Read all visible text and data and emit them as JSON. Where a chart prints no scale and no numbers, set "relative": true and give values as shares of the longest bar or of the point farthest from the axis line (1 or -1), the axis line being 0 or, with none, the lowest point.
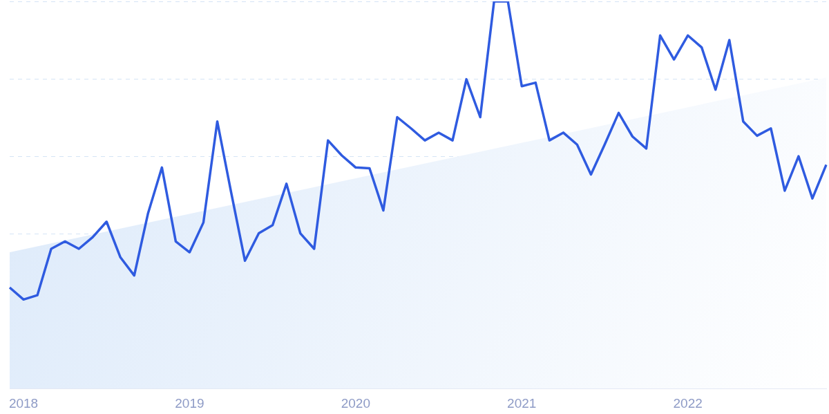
{
  "chart_data": {
    "type": "line",
    "relative": true,
    "grid": "y",
    "legend": false,
    "marker": "none",
    "line_style": "solid",
    "categories": [
      null,
      "2018",
      null,
      null,
      null,
      null,
      null,
      null,
      null,
      null,
      null,
      null,
      null,
      "2019",
      null,
      null,
      null,
      null,
      null,
      null,
      null,
      null,
      null,
      null,
      null,
      "2020",
      null,
      null,
      null,
      null,
      null,
      null,
      null,
      null,
      null,
      null,
      null,
      "2021",
      null,
      null,
      null,
      null,
      null,
      null,
      null,
      null,
      null,
      null,
      null,
      "2022",
      null,
      null,
      null,
      null,
      null,
      null,
      null,
      null,
      null,
      null
    ],
    "series": [
      {
        "color": "#2f5be0",
        "values": [
          0.261,
          0.23,
          0.241,
          0.361,
          0.38,
          0.361,
          0.391,
          0.431,
          0.339,
          0.292,
          0.453,
          0.571,
          0.38,
          0.352,
          0.429,
          0.69,
          0.507,
          0.33,
          0.401,
          0.422,
          0.529,
          0.401,
          0.361,
          0.641,
          0.602,
          0.571,
          0.569,
          0.46,
          0.701,
          0.672,
          0.641,
          0.661,
          0.641,
          0.799,
          0.701,
          1,
          1,
          0.781,
          0.79,
          0.641,
          0.661,
          0.63,
          0.553,
          0.631,
          0.712,
          0.651,
          0.62,
          0.912,
          0.85,
          0.912,
          0.881,
          0.772,
          0.9,
          0.69,
          0.653,
          0.672,
          0.511,
          0.6,
          0.491,
          0.578
        ]
      },
      {
        "type": "area",
        "color": "#dbe9fa",
        "values": [
          0.352,
          null,
          null,
          null,
          null,
          null,
          null,
          null,
          null,
          null,
          null,
          null,
          null,
          null,
          null,
          null,
          null,
          null,
          null,
          null,
          null,
          null,
          null,
          null,
          null,
          null,
          null,
          null,
          null,
          null,
          null,
          null,
          null,
          null,
          null,
          null,
          null,
          null,
          null,
          null,
          null,
          null,
          null,
          null,
          null,
          null,
          null,
          null,
          null,
          null,
          null,
          null,
          null,
          null,
          null,
          null,
          null,
          null,
          null,
          0.803
        ]
      }
    ]
  }
}
